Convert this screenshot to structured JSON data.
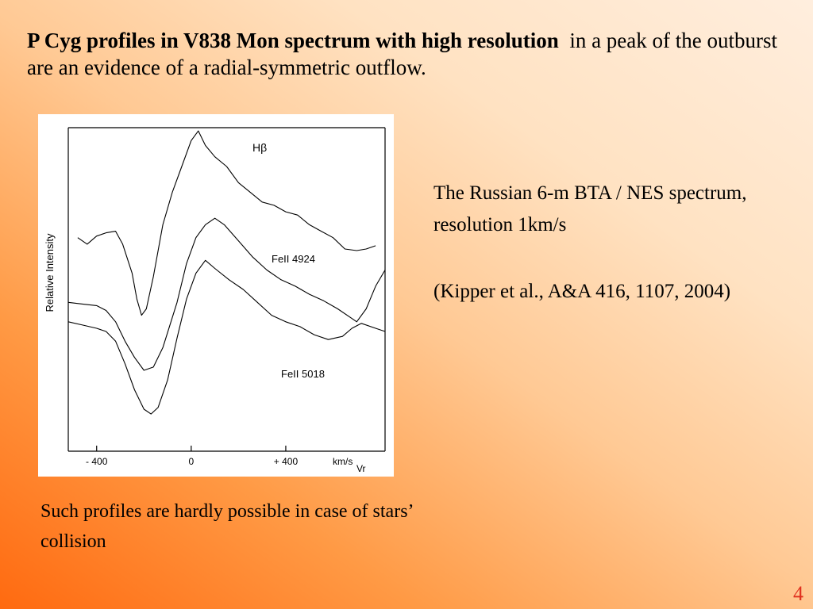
{
  "title": {
    "bold": "P Cyg profiles in V838 Mon spectrum with high resolution",
    "rest": "in a peak of the outburst are an evidence of a radial-symmetric outflow."
  },
  "side_text": {
    "source": "The Russian 6-m BTA / NES spectrum,  resolution 1km/s",
    "reference": "(Kipper et al., A&A 416, 1107, 2004)"
  },
  "caption": "Such profiles  are hardly possible  in case of  stars’ collision",
  "page_number": "4",
  "chart_data": {
    "type": "line",
    "ylabel": "Relative Intensity",
    "xlabel": "Vr",
    "x_unit": "km/s",
    "xlim": [
      -520,
      820
    ],
    "ylim": [
      0,
      1
    ],
    "xticks": [
      -400,
      0,
      400
    ],
    "xtick_labels": [
      "- 400",
      "0",
      "+ 400"
    ],
    "grid": false,
    "legend": "labels placed next to each curve",
    "series": [
      {
        "name": "Hβ",
        "points": [
          [
            -480,
            0.66
          ],
          [
            -440,
            0.64
          ],
          [
            -400,
            0.665
          ],
          [
            -360,
            0.675
          ],
          [
            -320,
            0.68
          ],
          [
            -290,
            0.64
          ],
          [
            -250,
            0.55
          ],
          [
            -230,
            0.47
          ],
          [
            -210,
            0.42
          ],
          [
            -190,
            0.44
          ],
          [
            -160,
            0.54
          ],
          [
            -120,
            0.7
          ],
          [
            -80,
            0.8
          ],
          [
            -40,
            0.88
          ],
          [
            0,
            0.96
          ],
          [
            30,
            0.99
          ],
          [
            60,
            0.945
          ],
          [
            100,
            0.91
          ],
          [
            150,
            0.88
          ],
          [
            200,
            0.83
          ],
          [
            250,
            0.8
          ],
          [
            300,
            0.77
          ],
          [
            350,
            0.76
          ],
          [
            400,
            0.74
          ],
          [
            450,
            0.73
          ],
          [
            500,
            0.7
          ],
          [
            550,
            0.68
          ],
          [
            600,
            0.66
          ],
          [
            650,
            0.625
          ],
          [
            700,
            0.62
          ],
          [
            740,
            0.625
          ],
          [
            780,
            0.635
          ]
        ]
      },
      {
        "name": "FeII 4924",
        "points": [
          [
            -520,
            0.46
          ],
          [
            -460,
            0.455
          ],
          [
            -400,
            0.45
          ],
          [
            -360,
            0.435
          ],
          [
            -320,
            0.4
          ],
          [
            -280,
            0.34
          ],
          [
            -240,
            0.29
          ],
          [
            -200,
            0.25
          ],
          [
            -160,
            0.26
          ],
          [
            -120,
            0.32
          ],
          [
            -60,
            0.46
          ],
          [
            -20,
            0.58
          ],
          [
            20,
            0.66
          ],
          [
            60,
            0.7
          ],
          [
            100,
            0.72
          ],
          [
            140,
            0.7
          ],
          [
            200,
            0.65
          ],
          [
            260,
            0.6
          ],
          [
            320,
            0.56
          ],
          [
            380,
            0.53
          ],
          [
            440,
            0.51
          ],
          [
            500,
            0.485
          ],
          [
            560,
            0.465
          ],
          [
            620,
            0.44
          ],
          [
            680,
            0.41
          ],
          [
            700,
            0.4
          ],
          [
            740,
            0.44
          ],
          [
            780,
            0.51
          ],
          [
            820,
            0.56
          ]
        ]
      },
      {
        "name": "FeII 5018",
        "points": [
          [
            -520,
            0.4
          ],
          [
            -460,
            0.39
          ],
          [
            -400,
            0.38
          ],
          [
            -360,
            0.37
          ],
          [
            -320,
            0.34
          ],
          [
            -280,
            0.27
          ],
          [
            -240,
            0.19
          ],
          [
            -200,
            0.13
          ],
          [
            -170,
            0.115
          ],
          [
            -140,
            0.135
          ],
          [
            -100,
            0.22
          ],
          [
            -60,
            0.35
          ],
          [
            -20,
            0.47
          ],
          [
            20,
            0.55
          ],
          [
            60,
            0.59
          ],
          [
            100,
            0.565
          ],
          [
            160,
            0.53
          ],
          [
            220,
            0.5
          ],
          [
            280,
            0.46
          ],
          [
            340,
            0.42
          ],
          [
            400,
            0.4
          ],
          [
            460,
            0.385
          ],
          [
            520,
            0.36
          ],
          [
            580,
            0.345
          ],
          [
            640,
            0.355
          ],
          [
            680,
            0.38
          ],
          [
            720,
            0.395
          ],
          [
            780,
            0.38
          ],
          [
            820,
            0.37
          ]
        ]
      }
    ]
  }
}
